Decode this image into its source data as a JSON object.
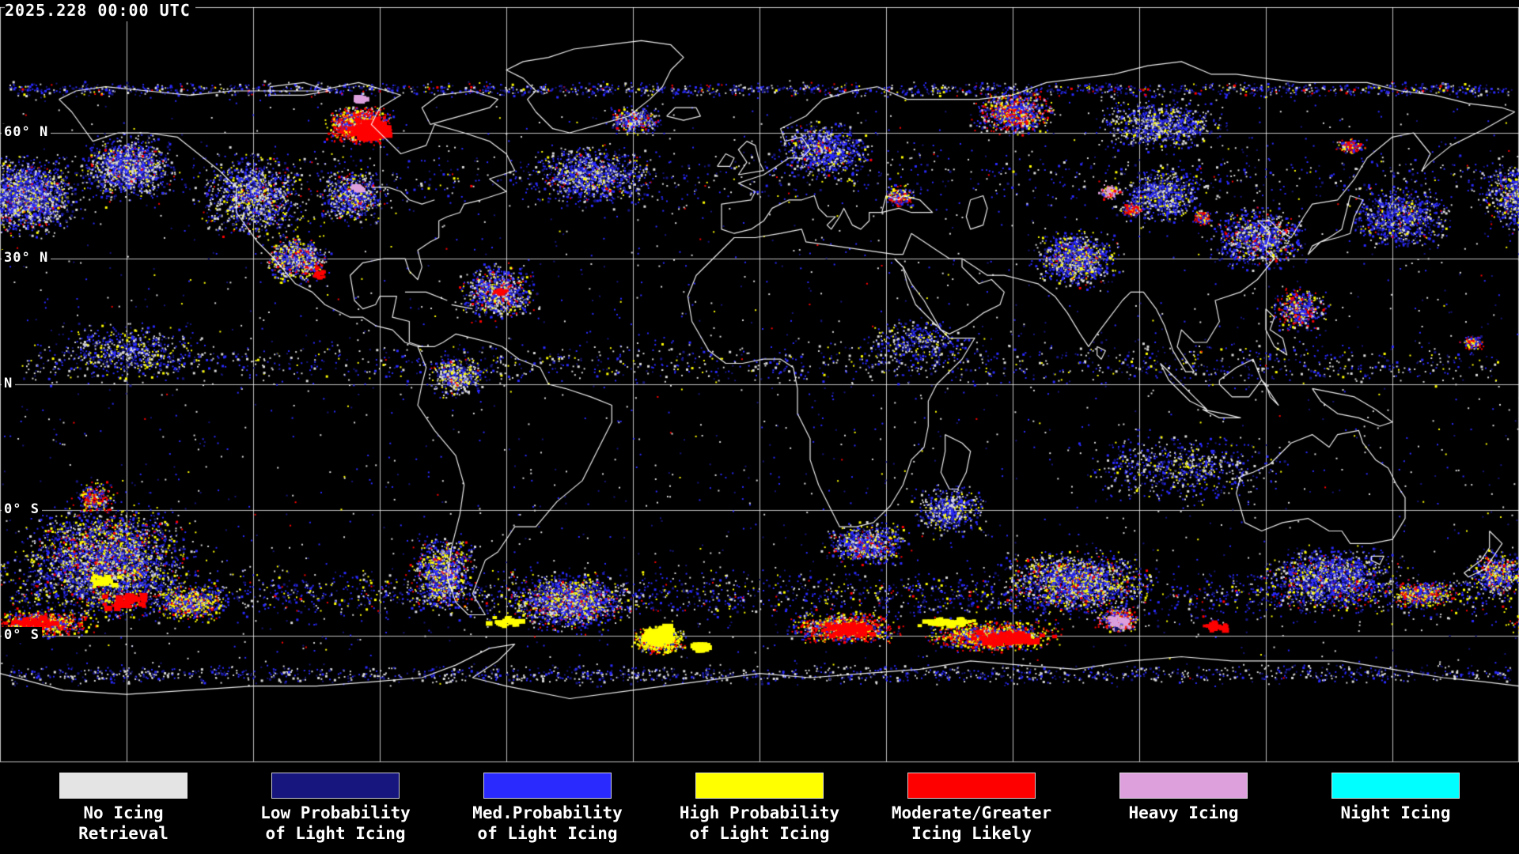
{
  "header": {
    "timestamp": "2025.228 00:00 UTC"
  },
  "map": {
    "background": "#000000",
    "grid_color": "#c0c0c0",
    "coastline_color": "#ffffff",
    "grid_lon_spacing_deg": 30,
    "grid_lat_spacing_deg": 30,
    "lat_labels": [
      {
        "text": "60° N",
        "lat": 60
      },
      {
        "text": "30° N",
        "lat": 30
      },
      {
        "text": "N",
        "lat": 0
      },
      {
        "text": "0° S",
        "lat": -30
      },
      {
        "text": "0° S",
        "lat": -60
      }
    ]
  },
  "legend": {
    "items": [
      {
        "label_line1": "No Icing",
        "label_line2": "Retrieval",
        "color": "#e4e4e4"
      },
      {
        "label_line1": "Low Probability",
        "label_line2": "of Light Icing",
        "color": "#16167e"
      },
      {
        "label_line1": "Med.Probability",
        "label_line2": "of Light Icing",
        "color": "#2a2aff"
      },
      {
        "label_line1": "High Probability",
        "label_line2": "of Light Icing",
        "color": "#ffff00"
      },
      {
        "label_line1": "Moderate/Greater",
        "label_line2": "Icing Likely",
        "color": "#ff0000"
      },
      {
        "label_line1": "Heavy Icing",
        "label_line2": "",
        "color": "#dda0dd"
      },
      {
        "label_line1": "Night Icing",
        "label_line2": "",
        "color": "#00ffff"
      }
    ]
  }
}
